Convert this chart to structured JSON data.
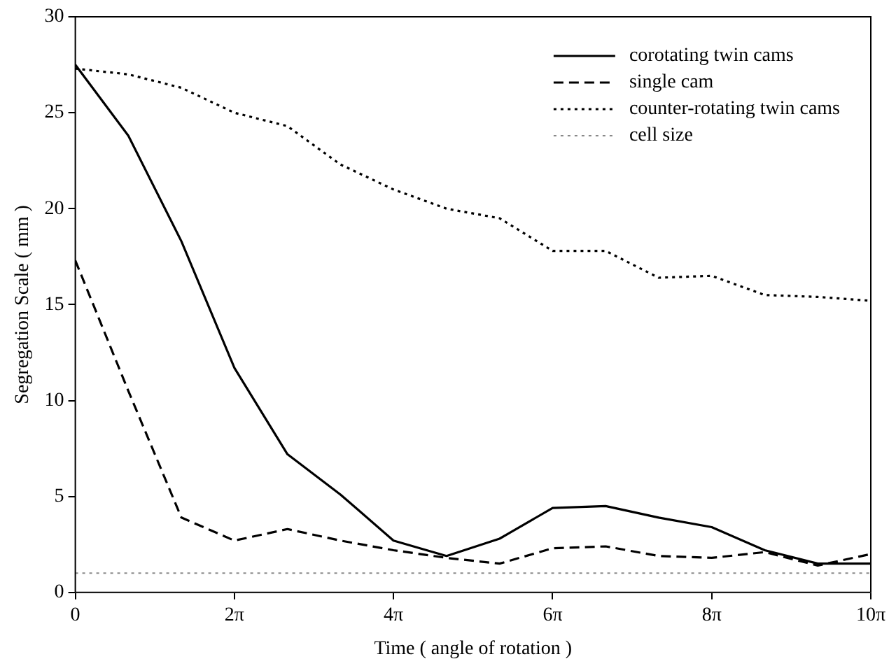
{
  "chart_data": {
    "type": "line",
    "xlabel": "Time ( angle of rotation )",
    "ylabel": "Segregation Scale ( mm )",
    "x": [
      0,
      2.094,
      4.189,
      6.283,
      8.378,
      10.472,
      12.566,
      14.661,
      16.755,
      18.85,
      20.944,
      23.038,
      25.133,
      27.227,
      29.322,
      31.416
    ],
    "xlim": [
      0,
      31.416
    ],
    "xticks": [
      {
        "value": 0,
        "label": "0"
      },
      {
        "value": 6.283,
        "label": "2π"
      },
      {
        "value": 12.566,
        "label": "4π"
      },
      {
        "value": 18.85,
        "label": "6π"
      },
      {
        "value": 25.133,
        "label": "8π"
      },
      {
        "value": 31.416,
        "label": "10π"
      }
    ],
    "ylim": [
      0,
      30
    ],
    "yticks": [
      0,
      5,
      10,
      15,
      20,
      25,
      30
    ],
    "grid": false,
    "legend": "top right",
    "marker": "none",
    "series": [
      {
        "name": "corotating twin cams",
        "color": "#000000",
        "line_style": "solid",
        "values": [
          27.5,
          23.8,
          18.3,
          11.7,
          7.2,
          5.1,
          2.7,
          1.9,
          2.8,
          4.4,
          4.5,
          3.9,
          3.4,
          2.2,
          1.5,
          1.5
        ]
      },
      {
        "name": "single cam",
        "color": "#000000",
        "line_style": "dashed",
        "values": [
          17.3,
          10.5,
          3.9,
          2.7,
          3.3,
          2.7,
          2.2,
          1.8,
          1.5,
          2.3,
          2.4,
          1.9,
          1.8,
          2.1,
          1.4,
          2.0
        ]
      },
      {
        "name": "counter-rotating twin cams",
        "color": "#000000",
        "line_style": "dotted",
        "values": [
          27.3,
          27.0,
          26.3,
          25.0,
          24.3,
          22.3,
          21.0,
          20.0,
          19.5,
          17.8,
          17.8,
          16.4,
          16.5,
          15.5,
          15.4,
          15.2
        ]
      },
      {
        "name": "cell size",
        "color": "#888888",
        "line_style": "dotted",
        "values": [
          1.0,
          1.0,
          1.0,
          1.0,
          1.0,
          1.0,
          1.0,
          1.0,
          1.0,
          1.0,
          1.0,
          1.0,
          1.0,
          1.0,
          1.0,
          1.0
        ]
      }
    ]
  }
}
